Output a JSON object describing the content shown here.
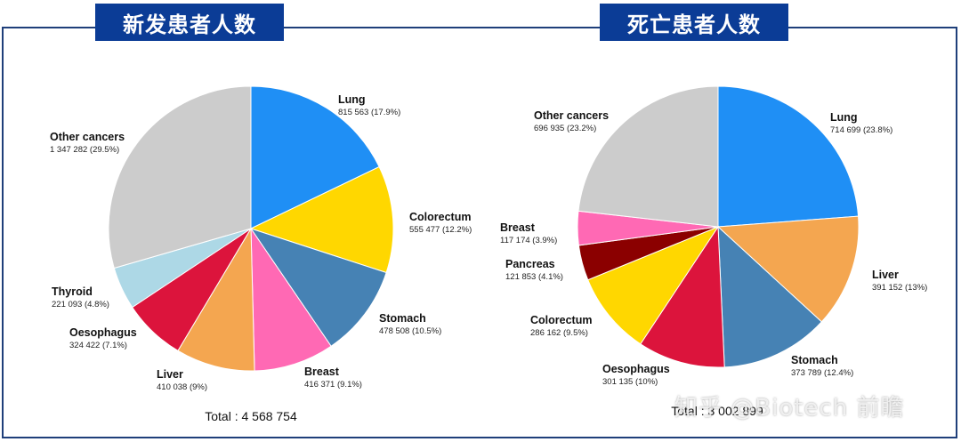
{
  "titles": {
    "left": "新发患者人数",
    "right": "死亡患者人数"
  },
  "watermark": "知乎 @Biotech 前瞻",
  "chart_data": [
    {
      "type": "pie",
      "title": "新发患者人数",
      "total_label": "Total : 4 568 754",
      "slices": [
        {
          "name": "Lung",
          "value_label": "815 563 (17.9%)",
          "value": 815563,
          "percent": 17.9,
          "color": "#1f8ff5"
        },
        {
          "name": "Colorectum",
          "value_label": "555 477 (12.2%)",
          "value": 555477,
          "percent": 12.2,
          "color": "#ffd700"
        },
        {
          "name": "Stomach",
          "value_label": "478 508 (10.5%)",
          "value": 478508,
          "percent": 10.5,
          "color": "#4682b4"
        },
        {
          "name": "Breast",
          "value_label": "416 371 (9.1%)",
          "value": 416371,
          "percent": 9.1,
          "color": "#ff69b4"
        },
        {
          "name": "Liver",
          "value_label": "410 038 (9%)",
          "value": 410038,
          "percent": 9.0,
          "color": "#f4a650"
        },
        {
          "name": "Oesophagus",
          "value_label": "324 422 (7.1%)",
          "value": 324422,
          "percent": 7.1,
          "color": "#dc143c"
        },
        {
          "name": "Thyroid",
          "value_label": "221 093 (4.8%)",
          "value": 221093,
          "percent": 4.8,
          "color": "#add8e6"
        },
        {
          "name": "Other cancers",
          "value_label": "1 347 282 (29.5%)",
          "value": 1347282,
          "percent": 29.5,
          "color": "#cccccc"
        }
      ]
    },
    {
      "type": "pie",
      "title": "死亡患者人数",
      "total_label": "Total : 3 002 899",
      "slices": [
        {
          "name": "Lung",
          "value_label": "714 699 (23.8%)",
          "value": 714699,
          "percent": 23.8,
          "color": "#1f8ff5"
        },
        {
          "name": "Liver",
          "value_label": "391 152 (13%)",
          "value": 391152,
          "percent": 13.0,
          "color": "#f4a650"
        },
        {
          "name": "Stomach",
          "value_label": "373 789 (12.4%)",
          "value": 373789,
          "percent": 12.4,
          "color": "#4682b4"
        },
        {
          "name": "Oesophagus",
          "value_label": "301 135 (10%)",
          "value": 301135,
          "percent": 10.0,
          "color": "#dc143c"
        },
        {
          "name": "Colorectum",
          "value_label": "286 162 (9.5%)",
          "value": 286162,
          "percent": 9.5,
          "color": "#ffd700"
        },
        {
          "name": "Pancreas",
          "value_label": "121 853 (4.1%)",
          "value": 121853,
          "percent": 4.1,
          "color": "#8b0000"
        },
        {
          "name": "Breast",
          "value_label": "117 174 (3.9%)",
          "value": 117174,
          "percent": 3.9,
          "color": "#ff69b4"
        },
        {
          "name": "Other cancers",
          "value_label": "696 935 (23.2%)",
          "value": 696935,
          "percent": 23.2,
          "color": "#cccccc"
        }
      ]
    }
  ]
}
